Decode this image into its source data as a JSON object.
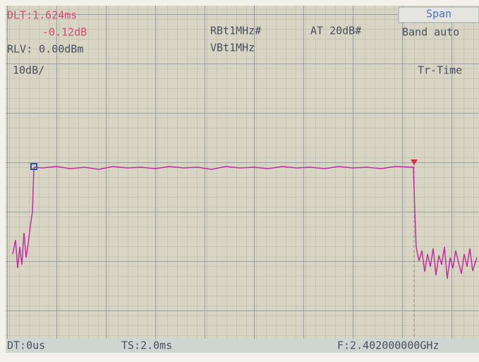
{
  "screen": {
    "delta_time": "DLT:1.624ms",
    "delta_level": "-0.12dB",
    "reference_level": "RLV: 0.00dBm",
    "scale": "10dB/",
    "rbw": "RBt1MHz#",
    "vbw": "VBt1MHz",
    "attenuation": "AT 20dB#",
    "menu_title": "Span",
    "menu_item": "Band auto",
    "menu_item_2": "Tr-Time",
    "delay_time": "DT:0us",
    "sweep_time": "TS:2.0ms",
    "center_frequency": "F:2.402000000GHz"
  }
}
